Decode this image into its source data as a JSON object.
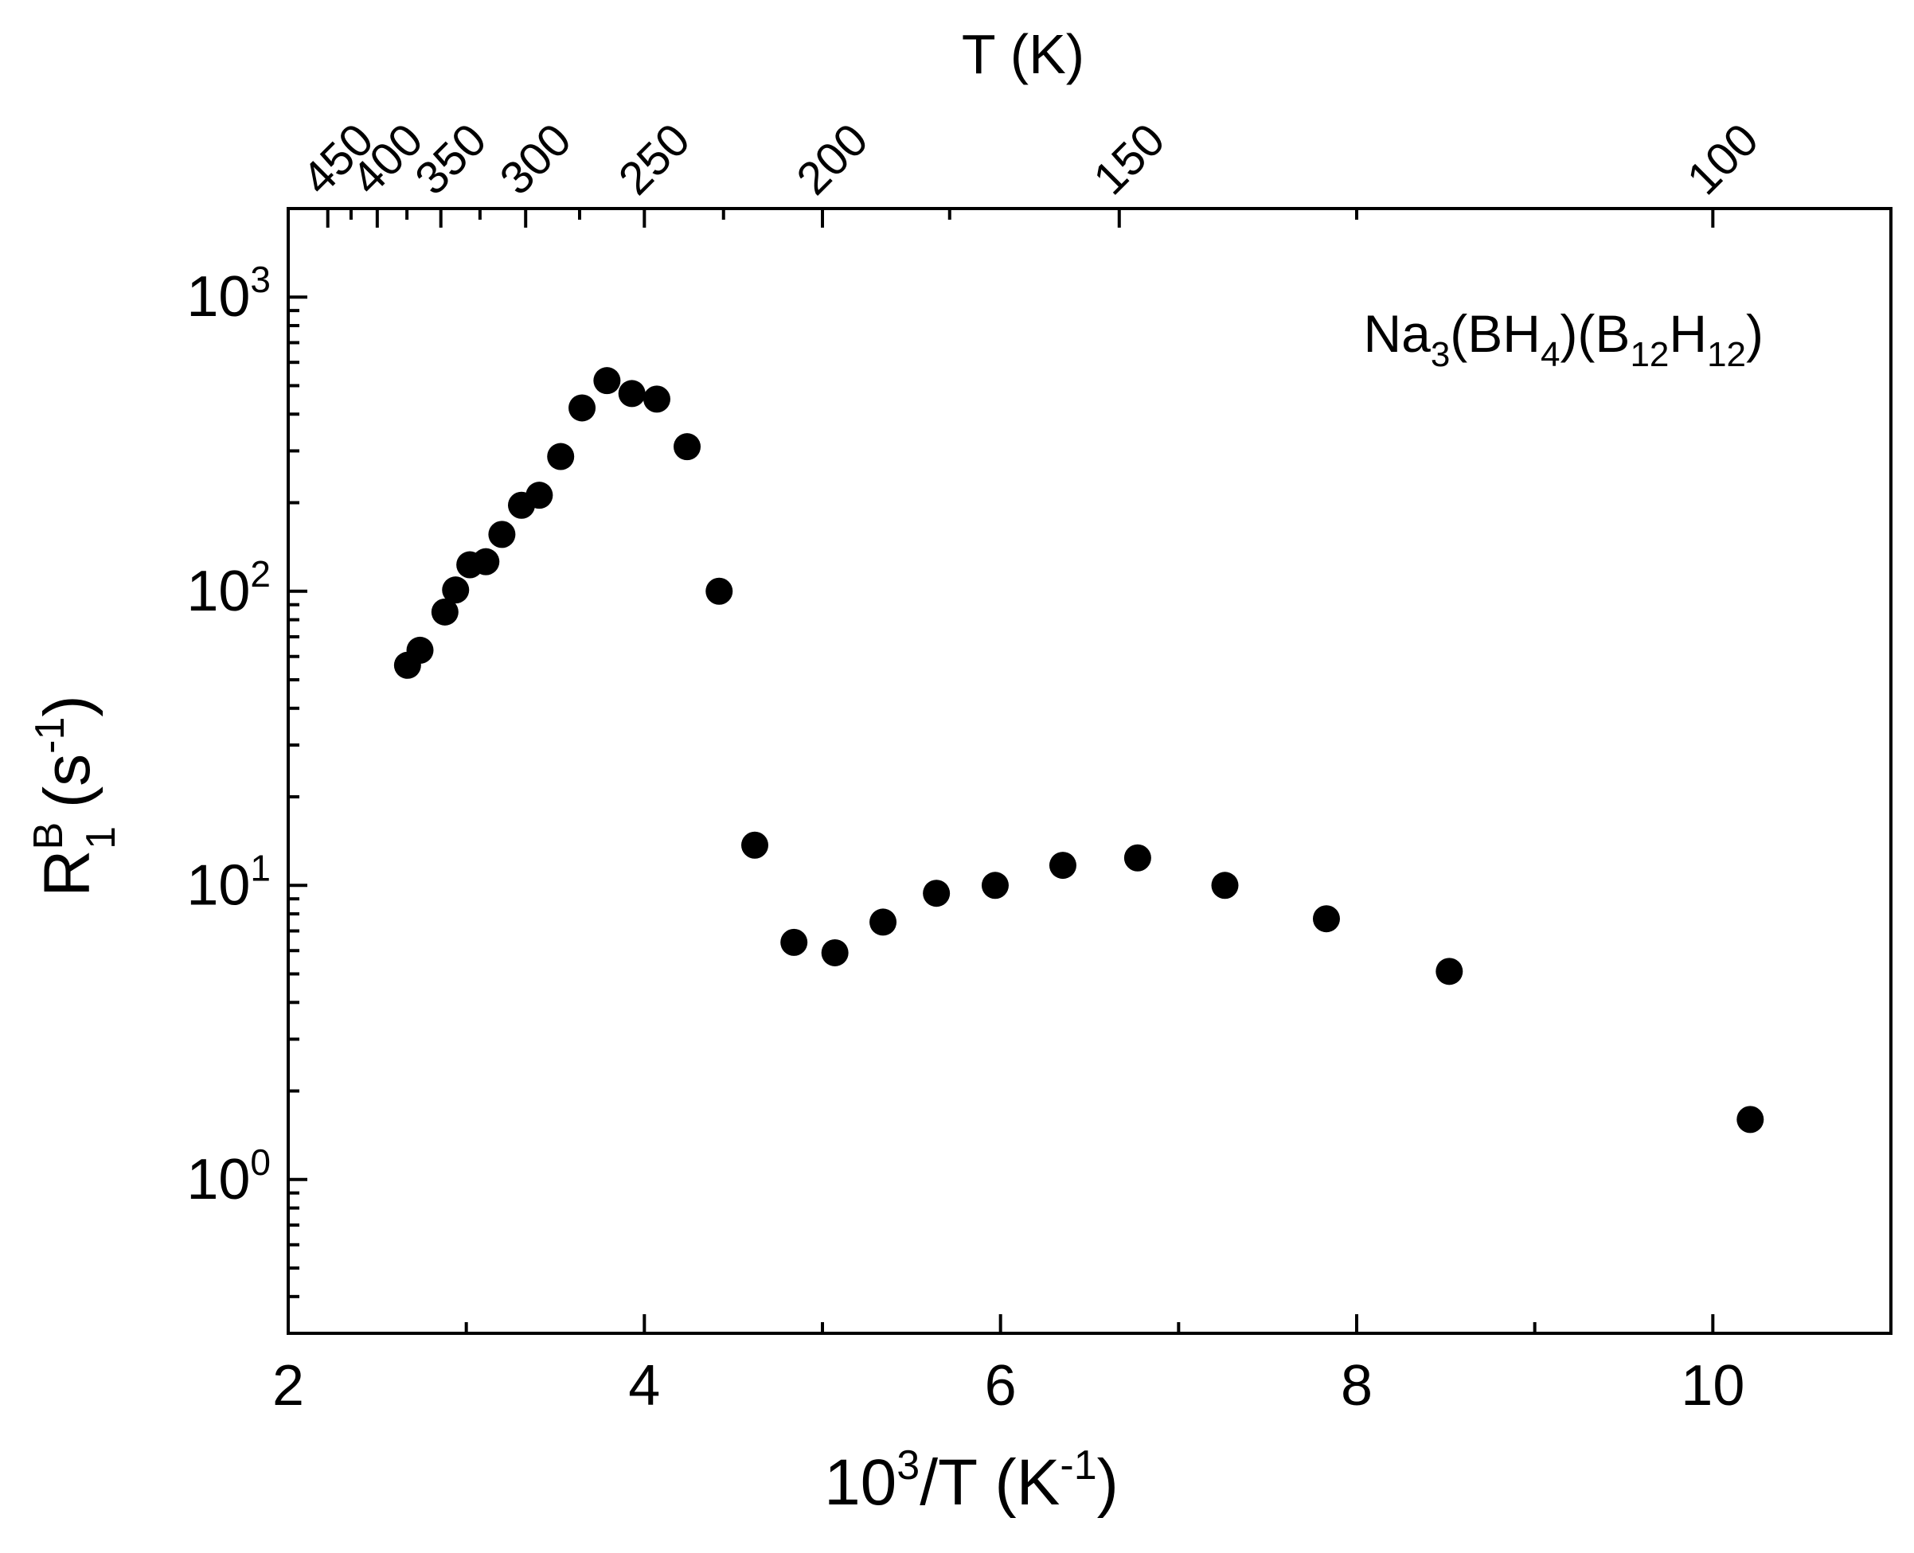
{
  "chart_data": {
    "type": "scatter",
    "annotation": {
      "base": "Na",
      "sub1": "3",
      "mid1": "(BH",
      "sub2": "4",
      "mid2": ")(B",
      "sub3": "12",
      "mid3": "H",
      "sub4": "12",
      "end": ")"
    },
    "xlabel": {
      "base": "10",
      "sup": "3",
      "rest": "/T  (K",
      "sup2": "-1",
      "end": ")"
    },
    "ylabel": {
      "base": "R",
      "sup": "B",
      "sub": "1",
      "rest": "  (s",
      "sup2": "-1",
      "end": ")"
    },
    "top_axis_label": "T  (K)",
    "xlim": [
      2,
      11
    ],
    "ylim": [
      0.3,
      2000
    ],
    "y_scale": "log",
    "x_ticks_major": [
      {
        "value": 2,
        "label": "2"
      },
      {
        "value": 4,
        "label": "4"
      },
      {
        "value": 6,
        "label": "6"
      },
      {
        "value": 8,
        "label": "8"
      },
      {
        "value": 10,
        "label": "10"
      }
    ],
    "x_ticks_minor": [
      3,
      5,
      7,
      9,
      11
    ],
    "y_ticks_major": [
      {
        "value": 1,
        "base": "10",
        "exp": "0"
      },
      {
        "value": 10,
        "base": "10",
        "exp": "1"
      },
      {
        "value": 100,
        "base": "10",
        "exp": "2"
      },
      {
        "value": 1000,
        "base": "10",
        "exp": "3"
      }
    ],
    "top_ticks_major": [
      {
        "value": 450,
        "label": "450"
      },
      {
        "value": 400,
        "label": "400"
      },
      {
        "value": 350,
        "label": "350"
      },
      {
        "value": 300,
        "label": "300"
      },
      {
        "value": 250,
        "label": "250"
      },
      {
        "value": 200,
        "label": "200"
      },
      {
        "value": 150,
        "label": "150"
      },
      {
        "value": 100,
        "label": "100"
      }
    ],
    "top_ticks_minor": [
      500,
      425,
      375,
      325,
      275,
      225,
      175,
      125
    ],
    "series": [
      {
        "color": "#000000",
        "marker": "filled-circle",
        "x": [
          2.67,
          2.74,
          2.88,
          2.94,
          3.02,
          3.11,
          3.2,
          3.31,
          3.41,
          3.53,
          3.65,
          3.79,
          3.93,
          4.07,
          4.24,
          4.42,
          4.62,
          4.84,
          5.07,
          5.34,
          5.64,
          5.97,
          6.35,
          6.77,
          7.26,
          7.83,
          8.52,
          10.21
        ],
        "y": [
          56,
          63,
          85,
          101,
          123,
          126,
          156,
          196,
          212,
          287,
          420,
          520,
          470,
          450,
          310,
          100,
          13.7,
          6.4,
          5.9,
          7.5,
          9.4,
          10.0,
          11.7,
          12.4,
          10.0,
          7.7,
          5.1,
          1.6
        ]
      }
    ]
  }
}
